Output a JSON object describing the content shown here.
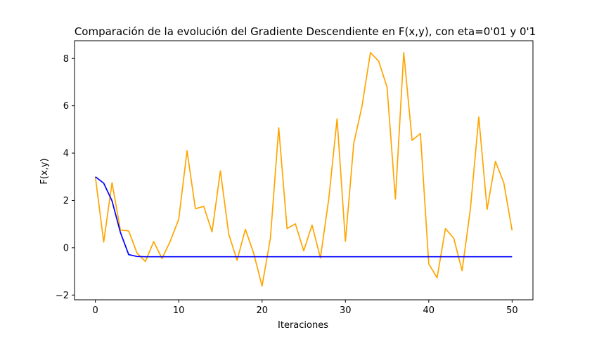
{
  "chart_data": {
    "type": "line",
    "title": "Comparación de la evolución del Gradiente Descendiente en F(x,y), con eta=0'01 y 0'1",
    "xlabel": "Iteraciones",
    "ylabel": "F(x,y)",
    "xlim": [
      -2.5,
      52.5
    ],
    "ylim": [
      -2.2,
      8.75
    ],
    "xticks": [
      0,
      10,
      20,
      30,
      40,
      50
    ],
    "yticks": [
      -2,
      0,
      2,
      4,
      6,
      8
    ],
    "grid": false,
    "legend": "none",
    "series": [
      {
        "color": "#ffa500",
        "x": [
          0,
          1,
          2,
          3,
          4,
          5,
          6,
          7,
          8,
          9,
          10,
          11,
          12,
          13,
          14,
          15,
          16,
          17,
          18,
          19,
          20,
          21,
          22,
          23,
          24,
          25,
          26,
          27,
          28,
          29,
          30,
          31,
          32,
          33,
          34,
          35,
          36,
          37,
          38,
          39,
          40,
          41,
          42,
          43,
          44,
          45,
          46,
          47,
          48,
          49,
          50
        ],
        "y": [
          3.0,
          0.24,
          2.75,
          0.75,
          0.71,
          -0.23,
          -0.58,
          0.26,
          -0.46,
          0.29,
          1.2,
          4.1,
          1.65,
          1.75,
          0.67,
          3.25,
          0.58,
          -0.53,
          0.78,
          -0.24,
          -1.62,
          0.4,
          5.07,
          0.81,
          1.01,
          -0.13,
          0.96,
          -0.43,
          2.05,
          5.45,
          0.27,
          4.4,
          6.0,
          8.25,
          7.88,
          6.78,
          2.06,
          8.25,
          4.54,
          4.83,
          -0.68,
          -1.27,
          0.81,
          0.4,
          -0.97,
          1.65,
          5.53,
          1.62,
          3.65,
          2.75,
          0.73
        ]
      },
      {
        "color": "#0000ff",
        "x": [
          0,
          1,
          2,
          3,
          4,
          5,
          6,
          7,
          8,
          9,
          10,
          11,
          12,
          13,
          14,
          15,
          16,
          17,
          18,
          19,
          20,
          21,
          22,
          23,
          24,
          25,
          26,
          27,
          28,
          29,
          30,
          31,
          32,
          33,
          34,
          35,
          36,
          37,
          38,
          39,
          40,
          41,
          42,
          43,
          44,
          45,
          46,
          47,
          48,
          49,
          50
        ],
        "y": [
          3.0,
          2.73,
          1.98,
          0.65,
          -0.29,
          -0.37,
          -0.38,
          -0.38,
          -0.38,
          -0.38,
          -0.38,
          -0.38,
          -0.38,
          -0.38,
          -0.38,
          -0.38,
          -0.38,
          -0.38,
          -0.38,
          -0.38,
          -0.38,
          -0.38,
          -0.38,
          -0.38,
          -0.38,
          -0.38,
          -0.38,
          -0.38,
          -0.38,
          -0.38,
          -0.38,
          -0.38,
          -0.38,
          -0.38,
          -0.38,
          -0.38,
          -0.38,
          -0.38,
          -0.38,
          -0.38,
          -0.38,
          -0.38,
          -0.38,
          -0.38,
          -0.38,
          -0.38,
          -0.38,
          -0.38,
          -0.38,
          -0.38,
          -0.38
        ]
      }
    ]
  }
}
